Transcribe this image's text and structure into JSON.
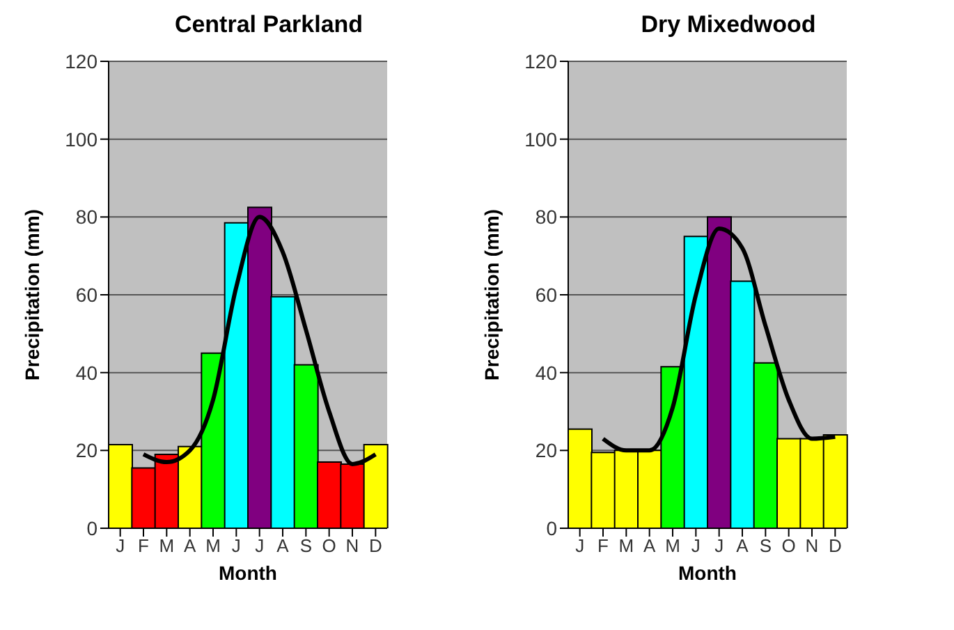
{
  "chart_data": [
    {
      "type": "bar",
      "title": "Central Parkland",
      "xlabel": "Month",
      "ylabel": "Precipitation (mm)",
      "categories": [
        "J",
        "F",
        "M",
        "A",
        "M",
        "J",
        "J",
        "A",
        "S",
        "O",
        "N",
        "D"
      ],
      "ylim": [
        0,
        120
      ],
      "yticks": [
        0,
        20,
        40,
        60,
        80,
        100,
        120
      ],
      "grid": "y",
      "series": [
        {
          "colors": [
            "#ffff00",
            "#ff0000",
            "#ff0000",
            "#ffff00",
            "#00ff00",
            "#00ffff",
            "#800080",
            "#00ffff",
            "#00ff00",
            "#ff0000",
            "#ff0000",
            "#ffff00"
          ],
          "values": [
            21.5,
            15.5,
            19,
            21,
            45,
            78.5,
            82.5,
            59.5,
            42,
            17,
            16.5,
            21.5
          ]
        },
        {
          "type": "line",
          "color": "#000000",
          "marker": "none",
          "values": [
            null,
            19,
            17,
            20,
            33,
            62,
            80,
            71,
            51,
            30,
            16.5,
            19
          ]
        }
      ]
    },
    {
      "type": "bar",
      "title": "Dry Mixedwood",
      "xlabel": "Month",
      "ylabel": "Precipitation (mm)",
      "categories": [
        "J",
        "F",
        "M",
        "A",
        "M",
        "J",
        "J",
        "A",
        "S",
        "O",
        "N",
        "D"
      ],
      "ylim": [
        0,
        120
      ],
      "yticks": [
        0,
        20,
        40,
        60,
        80,
        100,
        120
      ],
      "grid": "y",
      "series": [
        {
          "colors": [
            "#ffff00",
            "#ffff00",
            "#ffff00",
            "#ffff00",
            "#00ff00",
            "#00ffff",
            "#800080",
            "#00ffff",
            "#00ff00",
            "#ffff00",
            "#ffff00",
            "#ffff00"
          ],
          "values": [
            25.5,
            19.5,
            20,
            20,
            41.5,
            75,
            80,
            63.5,
            42.5,
            23,
            23,
            24
          ]
        },
        {
          "type": "line",
          "color": "#000000",
          "marker": "none",
          "values": [
            null,
            23,
            20,
            20,
            31,
            60,
            77,
            72,
            52,
            33,
            23,
            23.5
          ]
        }
      ]
    }
  ]
}
